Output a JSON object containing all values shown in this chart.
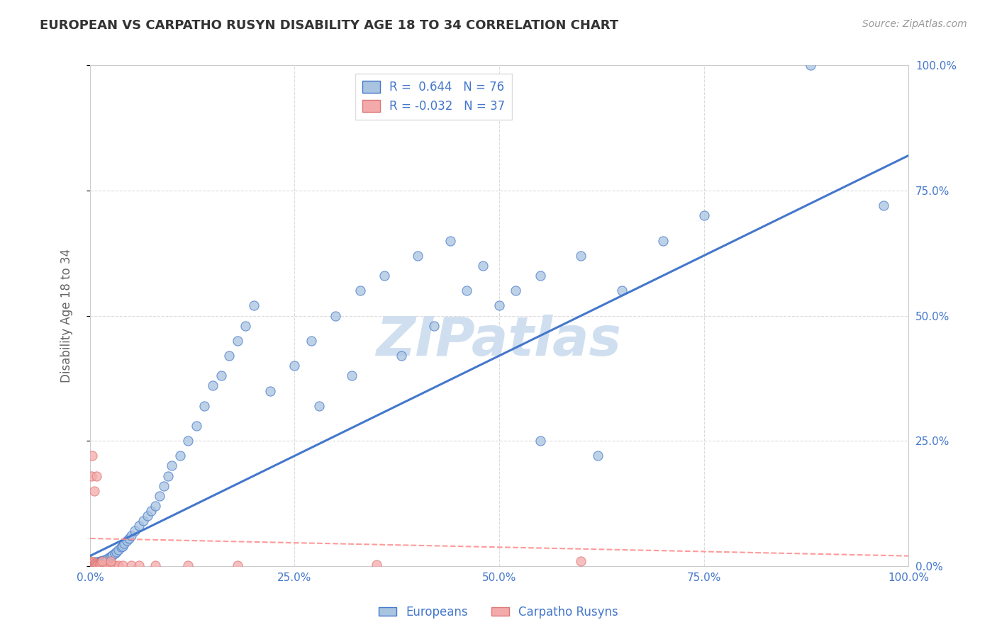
{
  "title": "EUROPEAN VS CARPATHO RUSYN DISABILITY AGE 18 TO 34 CORRELATION CHART",
  "source": "Source: ZipAtlas.com",
  "ylabel": "Disability Age 18 to 34",
  "xlim": [
    0,
    1
  ],
  "ylim": [
    0,
    1
  ],
  "european_R": 0.644,
  "european_N": 76,
  "carpatho_R": -0.032,
  "carpatho_N": 37,
  "european_color": "#A8C4E0",
  "carpatho_color": "#F4AAAA",
  "european_line_color": "#4477CC",
  "carpatho_line_color": "#FF8888",
  "watermark": "ZIPatlas",
  "watermark_color": "#D0DFF0",
  "background_color": "#FFFFFF",
  "grid_color": "#CCCCCC",
  "tick_color": "#4477CC",
  "eu_line_start_x": 0.0,
  "eu_line_start_y": 0.02,
  "eu_line_end_x": 1.0,
  "eu_line_end_y": 0.82,
  "ca_line_start_x": 0.0,
  "ca_line_start_y": 0.055,
  "ca_line_end_x": 1.0,
  "ca_line_end_y": 0.02,
  "eu_x": [
    0.003,
    0.004,
    0.005,
    0.006,
    0.007,
    0.008,
    0.009,
    0.01,
    0.011,
    0.012,
    0.013,
    0.014,
    0.015,
    0.016,
    0.017,
    0.018,
    0.019,
    0.02,
    0.022,
    0.024,
    0.026,
    0.028,
    0.03,
    0.032,
    0.035,
    0.038,
    0.04,
    0.042,
    0.045,
    0.048,
    0.05,
    0.055,
    0.06,
    0.065,
    0.07,
    0.075,
    0.08,
    0.085,
    0.09,
    0.095,
    0.1,
    0.11,
    0.12,
    0.13,
    0.14,
    0.15,
    0.16,
    0.17,
    0.18,
    0.19,
    0.2,
    0.22,
    0.25,
    0.27,
    0.3,
    0.33,
    0.36,
    0.4,
    0.44,
    0.48,
    0.52,
    0.28,
    0.32,
    0.38,
    0.42,
    0.46,
    0.5,
    0.55,
    0.6,
    0.65,
    0.7,
    0.75,
    0.55,
    0.62,
    0.88,
    0.97
  ],
  "eu_y": [
    0.005,
    0.006,
    0.004,
    0.008,
    0.005,
    0.007,
    0.006,
    0.008,
    0.007,
    0.009,
    0.008,
    0.01,
    0.009,
    0.011,
    0.01,
    0.012,
    0.011,
    0.013,
    0.015,
    0.018,
    0.02,
    0.022,
    0.025,
    0.028,
    0.032,
    0.038,
    0.04,
    0.045,
    0.05,
    0.055,
    0.06,
    0.07,
    0.08,
    0.09,
    0.1,
    0.11,
    0.12,
    0.14,
    0.16,
    0.18,
    0.2,
    0.22,
    0.25,
    0.28,
    0.32,
    0.36,
    0.38,
    0.42,
    0.45,
    0.48,
    0.52,
    0.35,
    0.4,
    0.45,
    0.5,
    0.55,
    0.58,
    0.62,
    0.65,
    0.6,
    0.55,
    0.32,
    0.38,
    0.42,
    0.48,
    0.55,
    0.52,
    0.58,
    0.62,
    0.55,
    0.65,
    0.7,
    0.25,
    0.22,
    1.0,
    0.72
  ],
  "ca_x": [
    0.001,
    0.002,
    0.002,
    0.003,
    0.003,
    0.004,
    0.004,
    0.005,
    0.005,
    0.006,
    0.006,
    0.007,
    0.008,
    0.008,
    0.009,
    0.01,
    0.011,
    0.012,
    0.013,
    0.015,
    0.017,
    0.02,
    0.022,
    0.025,
    0.028,
    0.03,
    0.035,
    0.04,
    0.05,
    0.06,
    0.08,
    0.12,
    0.18,
    0.35,
    0.6,
    0.015,
    0.025
  ],
  "ca_y": [
    0.01,
    0.008,
    0.18,
    0.005,
    0.22,
    0.006,
    0.008,
    0.004,
    0.15,
    0.005,
    0.006,
    0.004,
    0.003,
    0.18,
    0.003,
    0.002,
    0.003,
    0.002,
    0.002,
    0.002,
    0.002,
    0.002,
    0.001,
    0.001,
    0.001,
    0.001,
    0.001,
    0.001,
    0.001,
    0.001,
    0.001,
    0.001,
    0.001,
    0.002,
    0.01,
    0.01,
    0.01
  ]
}
